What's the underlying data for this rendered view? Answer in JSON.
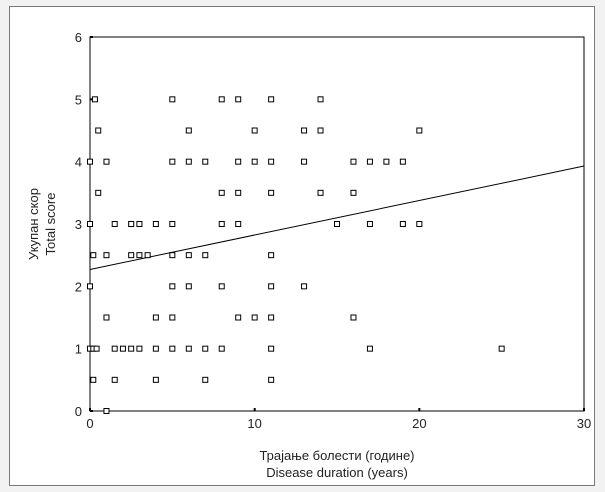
{
  "chart_data": {
    "type": "scatter",
    "xlabel": [
      "Трајање болести (године)",
      "Disease duration (years)"
    ],
    "ylabel": [
      "Укупан скор",
      "Total score"
    ],
    "xlim": [
      0,
      30
    ],
    "ylim": [
      0,
      6
    ],
    "xticks": [
      "0",
      "10",
      "20",
      "30"
    ],
    "yticks": [
      "0",
      "1",
      "2",
      "3",
      "4",
      "5",
      "6"
    ],
    "grid": false,
    "legend": "none",
    "points": [
      [
        0.3,
        5
      ],
      [
        0.5,
        4.5
      ],
      [
        0,
        4
      ],
      [
        0.5,
        3.5
      ],
      [
        1,
        4
      ],
      [
        0,
        3
      ],
      [
        0.2,
        2.5
      ],
      [
        1,
        2.5
      ],
      [
        0,
        2
      ],
      [
        1,
        1.5
      ],
      [
        0,
        1
      ],
      [
        0.2,
        1
      ],
      [
        0.4,
        1
      ],
      [
        0.2,
        0.5
      ],
      [
        1,
        0
      ],
      [
        1.5,
        3
      ],
      [
        2.5,
        3
      ],
      [
        2.5,
        2.5
      ],
      [
        3,
        3
      ],
      [
        3,
        2.5
      ],
      [
        3.5,
        2.5
      ],
      [
        1.5,
        1
      ],
      [
        2,
        1
      ],
      [
        1.5,
        0.5
      ],
      [
        2.5,
        1
      ],
      [
        3,
        1
      ],
      [
        4,
        3
      ],
      [
        4,
        1.5
      ],
      [
        4,
        1
      ],
      [
        4,
        0.5
      ],
      [
        5,
        5
      ],
      [
        5,
        4
      ],
      [
        5,
        3
      ],
      [
        5,
        2.5
      ],
      [
        5,
        2
      ],
      [
        5,
        1.5
      ],
      [
        5,
        1
      ],
      [
        6,
        4.5
      ],
      [
        6,
        4
      ],
      [
        6,
        2.5
      ],
      [
        6,
        2
      ],
      [
        6,
        1
      ],
      [
        7,
        4
      ],
      [
        7,
        2.5
      ],
      [
        7,
        1
      ],
      [
        7,
        0.5
      ],
      [
        8,
        5
      ],
      [
        8,
        3.5
      ],
      [
        8,
        3
      ],
      [
        8,
        2
      ],
      [
        8,
        1
      ],
      [
        9,
        5
      ],
      [
        9,
        4
      ],
      [
        9,
        3.5
      ],
      [
        9,
        3
      ],
      [
        9,
        1.5
      ],
      [
        10,
        4.5
      ],
      [
        10,
        4
      ],
      [
        10,
        1.5
      ],
      [
        11,
        5
      ],
      [
        11,
        4
      ],
      [
        11,
        3.5
      ],
      [
        11,
        2.5
      ],
      [
        11,
        2
      ],
      [
        11,
        1.5
      ],
      [
        11,
        1
      ],
      [
        11,
        0.5
      ],
      [
        13,
        4.5
      ],
      [
        13,
        4
      ],
      [
        13,
        2
      ],
      [
        14,
        5
      ],
      [
        14,
        4.5
      ],
      [
        14,
        3.5
      ],
      [
        15,
        3
      ],
      [
        16,
        4
      ],
      [
        16,
        3.5
      ],
      [
        16,
        1.5
      ],
      [
        17,
        4
      ],
      [
        17,
        3
      ],
      [
        17,
        1
      ],
      [
        18,
        4
      ],
      [
        19,
        4
      ],
      [
        19,
        3
      ],
      [
        20,
        4.5
      ],
      [
        20,
        3
      ],
      [
        25,
        1
      ]
    ],
    "trendline": {
      "x": [
        0,
        30
      ],
      "y": [
        2.27,
        3.93
      ]
    }
  },
  "colors": {
    "marker": "#000000",
    "axis": "#000000",
    "line": "#000000"
  }
}
